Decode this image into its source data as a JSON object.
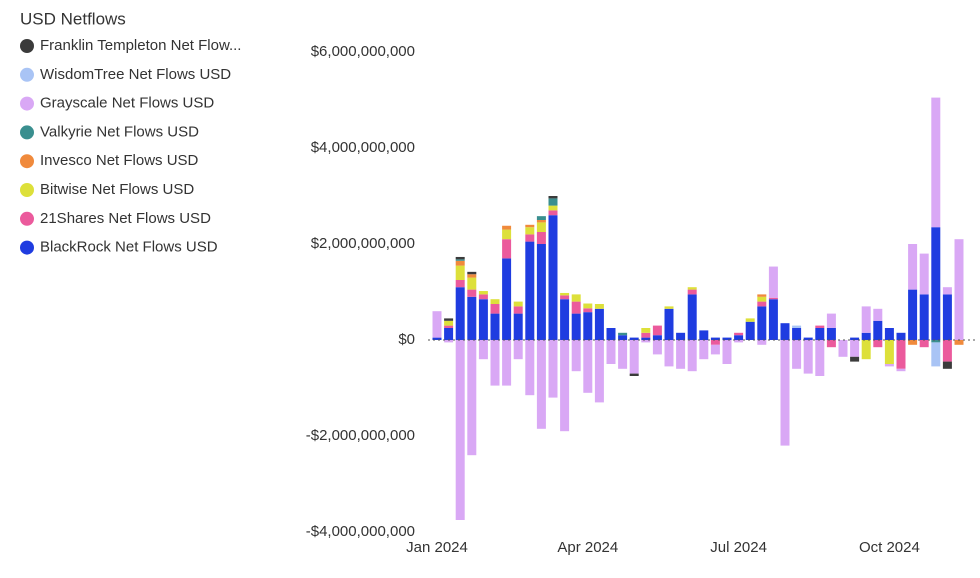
{
  "chart_data": {
    "type": "stacked-bar",
    "title": "USD Netflows",
    "categories": [
      "Jan 2024",
      null,
      null,
      null,
      null,
      null,
      null,
      null,
      null,
      null,
      null,
      null,
      null,
      "Apr 2024",
      null,
      null,
      null,
      null,
      null,
      null,
      null,
      null,
      null,
      null,
      null,
      null,
      "Jul 2024",
      null,
      null,
      null,
      null,
      null,
      null,
      null,
      null,
      null,
      null,
      null,
      null,
      "Oct 2024",
      null,
      null,
      null,
      null,
      null,
      null
    ],
    "series": [
      {
        "name": "Franklin Templeton Net Flow...",
        "color": "#3b3b3b",
        "values": [
          0,
          50000000.0,
          50000000.0,
          50000000.0,
          0,
          0,
          0,
          0,
          0,
          0,
          50000000.0,
          0,
          0,
          0,
          0,
          0,
          0,
          -50000000.0,
          0,
          0,
          0,
          0,
          0,
          0,
          0,
          0,
          0,
          0,
          0,
          0,
          0,
          0,
          0,
          0,
          0,
          0,
          -100000000.0,
          0,
          0,
          0,
          0,
          0,
          0,
          0,
          -150000000.0,
          0
        ]
      },
      {
        "name": "WisdomTree Net Flows USD",
        "color": "#a9c4f5",
        "values": [
          0,
          0,
          0,
          0,
          0,
          0,
          0,
          0,
          0,
          0,
          0,
          0,
          0,
          0,
          0,
          0,
          0,
          0,
          0,
          0,
          0,
          0,
          0,
          0,
          0,
          0,
          0,
          0,
          0,
          0,
          0,
          50000000.0,
          0,
          0,
          0,
          0,
          0,
          0,
          0,
          0,
          0,
          0,
          0,
          -500000000.0,
          0,
          0
        ]
      },
      {
        "name": "Grayscale Net Flows USD",
        "color": "#d9a8f5",
        "values": [
          550000000.0,
          -50000000.0,
          -3750000000.0,
          -2400000000.0,
          -400000000.0,
          -950000000.0,
          -950000000.0,
          -400000000.0,
          -1150000000.0,
          -1850000000.0,
          -1200000000.0,
          -1900000000.0,
          -650000000.0,
          -1100000000.0,
          -1300000000.0,
          -500000000.0,
          -600000000.0,
          -700000000.0,
          -50000000.0,
          -300000000.0,
          -550000000.0,
          -600000000.0,
          -650000000.0,
          -400000000.0,
          -200000000.0,
          -500000000.0,
          -50000000.0,
          0,
          -100000000.0,
          650000000.0,
          -2200000000.0,
          -600000000.0,
          -700000000.0,
          -750000000.0,
          300000000.0,
          -350000000.0,
          -350000000.0,
          550000000.0,
          250000000.0,
          -50000000.0,
          -50000000.0,
          950000000.0,
          850000000.0,
          2700000000.0,
          150000000.0,
          2100000000.0
        ]
      },
      {
        "name": "Valkyrie Net Flows USD",
        "color": "#3a8f8f",
        "values": [
          0,
          0,
          30000000.0,
          0,
          0,
          0,
          0,
          0,
          0,
          80000000.0,
          150000000.0,
          0,
          0,
          0,
          0,
          0,
          50000000.0,
          0,
          0,
          0,
          0,
          0,
          0,
          0,
          0,
          0,
          0,
          0,
          0,
          0,
          0,
          0,
          0,
          0,
          0,
          0,
          0,
          0,
          0,
          0,
          0,
          0,
          0,
          -50000000.0,
          0,
          0
        ]
      },
      {
        "name": "Invesco Net Flows USD",
        "color": "#f08a3c",
        "values": [
          0,
          0,
          100000000.0,
          70000000.0,
          0,
          0,
          80000000.0,
          0,
          50000000.0,
          50000000.0,
          0,
          0,
          0,
          0,
          0,
          0,
          0,
          0,
          0,
          0,
          0,
          0,
          0,
          0,
          0,
          0,
          0,
          0,
          50000000.0,
          0,
          0,
          0,
          0,
          0,
          0,
          0,
          0,
          0,
          0,
          0,
          0,
          -100000000.0,
          0,
          0,
          0,
          -100000000.0
        ]
      },
      {
        "name": "Bitwise Net Flows USD",
        "color": "#dde03a",
        "values": [
          0,
          100000000.0,
          300000000.0,
          250000000.0,
          70000000.0,
          100000000.0,
          200000000.0,
          100000000.0,
          150000000.0,
          200000000.0,
          100000000.0,
          50000000.0,
          150000000.0,
          100000000.0,
          100000000.0,
          0,
          0,
          0,
          100000000.0,
          0,
          50000000.0,
          0,
          50000000.0,
          0,
          0,
          0,
          0,
          70000000.0,
          100000000.0,
          0,
          0,
          0,
          0,
          0,
          0,
          0,
          0,
          -400000000.0,
          0,
          -500000000.0,
          0,
          0,
          0,
          0,
          0,
          0
        ]
      },
      {
        "name": "21Shares Net Flows USD",
        "color": "#eb5a9c",
        "values": [
          0,
          50000000.0,
          150000000.0,
          150000000.0,
          100000000.0,
          200000000.0,
          400000000.0,
          150000000.0,
          150000000.0,
          250000000.0,
          100000000.0,
          80000000.0,
          250000000.0,
          80000000.0,
          0,
          0,
          0,
          0,
          100000000.0,
          200000000.0,
          0,
          0,
          100000000.0,
          0,
          -100000000.0,
          0,
          50000000.0,
          0,
          100000000.0,
          30000000.0,
          0,
          0,
          0,
          50000000.0,
          -150000000.0,
          0,
          0,
          0,
          -150000000.0,
          0,
          -600000000.0,
          0,
          -150000000.0,
          0,
          -450000000.0,
          0
        ]
      },
      {
        "name": "BlackRock Net Flows USD",
        "color": "#1f3ce0",
        "values": [
          50000000.0,
          250000000.0,
          1100000000.0,
          900000000.0,
          850000000.0,
          550000000.0,
          1700000000.0,
          550000000.0,
          2050000000.0,
          2000000000.0,
          2600000000.0,
          850000000.0,
          550000000.0,
          580000000.0,
          650000000.0,
          250000000.0,
          100000000.0,
          50000000.0,
          50000000.0,
          100000000.0,
          650000000.0,
          150000000.0,
          950000000.0,
          200000000.0,
          50000000.0,
          50000000.0,
          100000000.0,
          380000000.0,
          700000000.0,
          850000000.0,
          350000000.0,
          250000000.0,
          50000000.0,
          250000000.0,
          250000000.0,
          0,
          50000000.0,
          150000000.0,
          400000000.0,
          250000000.0,
          150000000.0,
          1050000000.0,
          950000000.0,
          2350000000.0,
          950000000.0,
          0
        ]
      }
    ],
    "ylim": [
      -4000000000,
      6000000000
    ],
    "yticks": [
      {
        "value": -4000000000,
        "label": "-$4,000,000,000"
      },
      {
        "value": -2000000000,
        "label": "-$2,000,000,000"
      },
      {
        "value": 0,
        "label": "$0"
      },
      {
        "value": 2000000000,
        "label": "$2,000,000,000"
      },
      {
        "value": 4000000000,
        "label": "$4,000,000,000"
      },
      {
        "value": 6000000000,
        "label": "$6,000,000,000"
      }
    ],
    "grid": false
  }
}
